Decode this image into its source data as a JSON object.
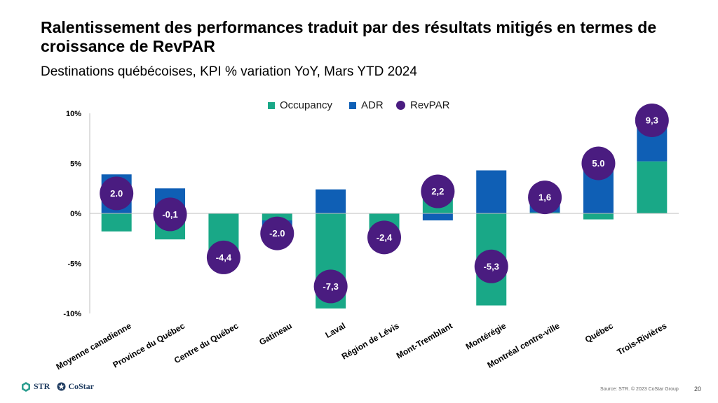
{
  "header": {
    "title": "Ralentissement des performances traduit par des résultats mitigés en termes de croissance de RevPAR",
    "subtitle": "Destinations québécoises, KPI % variation YoY, Mars YTD 2024"
  },
  "colors": {
    "occupancy": "#19A887",
    "adr": "#0F5FB5",
    "revpar": "#4A1C80",
    "axis": "#bfbfbf"
  },
  "legend": {
    "occupancy": "Occupancy",
    "adr": "ADR",
    "revpar": "RevPAR"
  },
  "footer": {
    "logo_str": "STR",
    "logo_costar": "CoStar",
    "source": "Source: STR. © 2023 CoStar Group",
    "page_number": "20"
  },
  "chart_data": {
    "type": "bar",
    "title": "Destinations québécoises, KPI % variation YoY, Mars YTD 2024",
    "ylim": [
      -10,
      10
    ],
    "yticks": [
      "10%",
      "5%",
      "0%",
      "-5%",
      "-10%"
    ],
    "ytick_values": [
      10,
      5,
      0,
      -5,
      -10
    ],
    "categories": [
      "Moyenne canadienne",
      "Province du Québec",
      "Centre du Québec",
      "Gatineau",
      "Laval",
      "Région de Lévis",
      "Mont-Tremblant",
      "Montérégie",
      "Montréal centre-ville",
      "Québec",
      "Trois-Rivières"
    ],
    "series": [
      {
        "name": "Occupancy",
        "values": [
          -1.8,
          -2.6,
          -3.6,
          -0.7,
          -9.5,
          -2.1,
          1.5,
          -9.2,
          0.1,
          -0.6,
          5.2
        ]
      },
      {
        "name": "ADR",
        "values": [
          3.9,
          2.5,
          -0.8,
          -1.3,
          2.4,
          -0.3,
          -0.7,
          4.3,
          1.5,
          5.6,
          4.1
        ]
      },
      {
        "name": "RevPAR",
        "values": [
          2.0,
          -0.1,
          -4.4,
          -2.0,
          -7.3,
          -2.4,
          2.2,
          -5.3,
          1.6,
          5.0,
          9.3
        ],
        "labels": [
          "2.0",
          "-0,1",
          "-4,4",
          "-2.0",
          "-7,3",
          "-2,4",
          "2,2",
          "-5,3",
          "1,6",
          "5.0",
          "9,3"
        ]
      }
    ],
    "grid": false,
    "legend_position": "top"
  }
}
